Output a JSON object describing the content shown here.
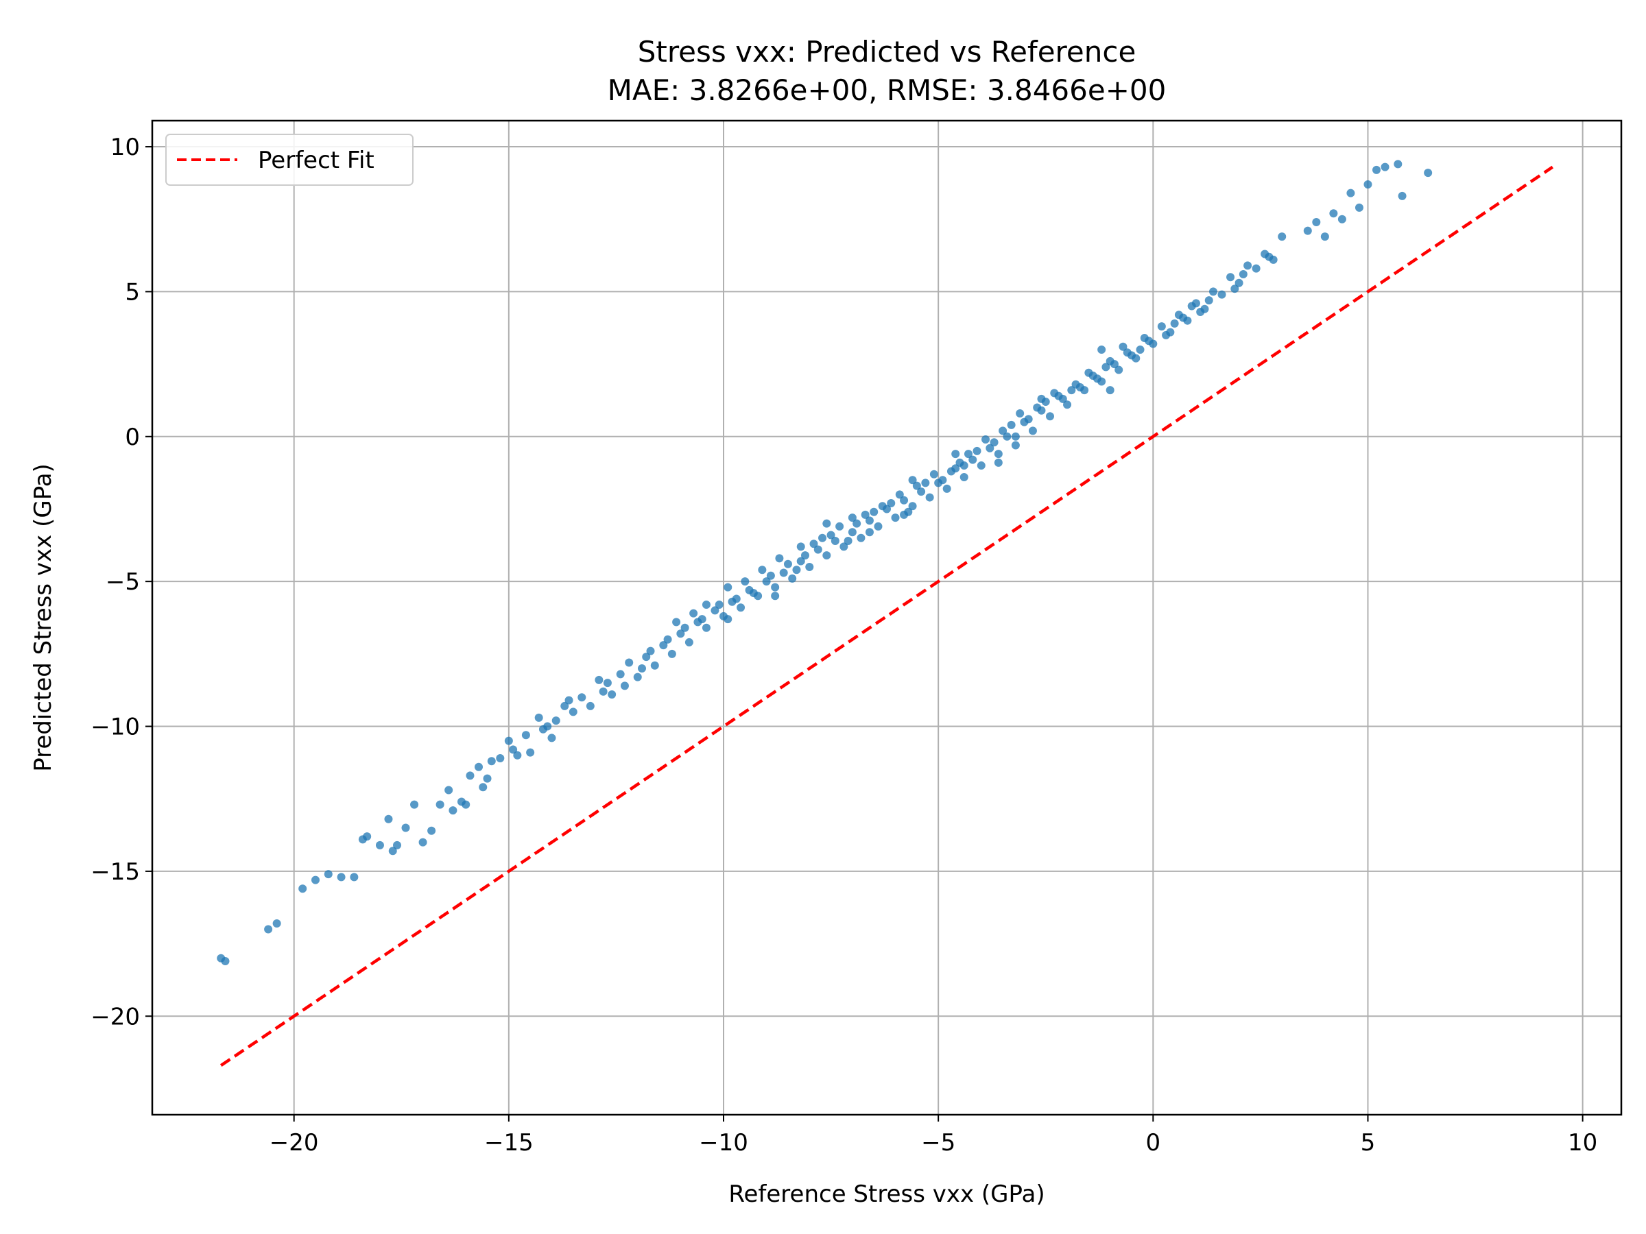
{
  "chart_data": {
    "type": "scatter",
    "title": "Stress vxx: Predicted vs Reference",
    "subtitle": "MAE: 3.8266e+00, RMSE: 3.8466e+00",
    "xlabel": "Reference Stress vxx (GPa)",
    "ylabel": "Predicted Stress vxx (GPa)",
    "xlim": [
      -23.3,
      10.9
    ],
    "ylim": [
      -23.4,
      10.9
    ],
    "xticks": [
      -20,
      -15,
      -10,
      -5,
      0,
      5,
      10
    ],
    "yticks": [
      -20,
      -15,
      -10,
      -5,
      0,
      5,
      10
    ],
    "xtick_labels": [
      "−20",
      "−15",
      "−10",
      "−5",
      "0",
      "5",
      "10"
    ],
    "ytick_labels": [
      "−20",
      "−15",
      "−10",
      "−5",
      "0",
      "5",
      "10"
    ],
    "grid": true,
    "legend": {
      "position": "top-left",
      "entries": [
        "Perfect Fit"
      ]
    },
    "perfect_fit": {
      "x": [
        -21.7,
        9.3
      ],
      "y": [
        -21.7,
        9.3
      ],
      "color": "#ff0000",
      "style": "dashed"
    },
    "series": [
      {
        "type": "scatter",
        "color": "#1f77b4",
        "points": [
          [
            -21.7,
            -18.0
          ],
          [
            -21.6,
            -18.1
          ],
          [
            -20.6,
            -17.0
          ],
          [
            -20.4,
            -16.8
          ],
          [
            -19.8,
            -15.6
          ],
          [
            -19.5,
            -15.3
          ],
          [
            -19.2,
            -15.1
          ],
          [
            -18.9,
            -15.2
          ],
          [
            -18.6,
            -15.2
          ],
          [
            -18.4,
            -13.9
          ],
          [
            -18.3,
            -13.8
          ],
          [
            -18.0,
            -14.1
          ],
          [
            -17.8,
            -13.2
          ],
          [
            -17.7,
            -14.3
          ],
          [
            -17.6,
            -14.1
          ],
          [
            -17.4,
            -13.5
          ],
          [
            -17.2,
            -12.7
          ],
          [
            -17.0,
            -14.0
          ],
          [
            -16.8,
            -13.6
          ],
          [
            -16.6,
            -12.7
          ],
          [
            -16.4,
            -12.2
          ],
          [
            -16.3,
            -12.9
          ],
          [
            -16.1,
            -12.6
          ],
          [
            -16.0,
            -12.7
          ],
          [
            -15.9,
            -11.7
          ],
          [
            -15.7,
            -11.4
          ],
          [
            -15.6,
            -12.1
          ],
          [
            -15.4,
            -11.2
          ],
          [
            -15.2,
            -11.1
          ],
          [
            -15.0,
            -10.5
          ],
          [
            -14.8,
            -11.0
          ],
          [
            -14.6,
            -10.3
          ],
          [
            -14.5,
            -10.9
          ],
          [
            -14.3,
            -9.7
          ],
          [
            -14.2,
            -10.1
          ],
          [
            -14.0,
            -10.4
          ],
          [
            -13.9,
            -9.8
          ],
          [
            -13.7,
            -9.3
          ],
          [
            -13.5,
            -9.5
          ],
          [
            -13.3,
            -9.0
          ],
          [
            -13.1,
            -9.3
          ],
          [
            -12.9,
            -8.4
          ],
          [
            -12.8,
            -8.8
          ],
          [
            -12.6,
            -8.9
          ],
          [
            -12.4,
            -8.2
          ],
          [
            -12.2,
            -7.8
          ],
          [
            -12.0,
            -8.3
          ],
          [
            -11.8,
            -7.6
          ],
          [
            -11.6,
            -7.9
          ],
          [
            -11.4,
            -7.2
          ],
          [
            -11.2,
            -7.5
          ],
          [
            -11.0,
            -6.8
          ],
          [
            -10.8,
            -7.1
          ],
          [
            -10.6,
            -6.4
          ],
          [
            -10.4,
            -6.6
          ],
          [
            -10.2,
            -6.0
          ],
          [
            -10.0,
            -6.2
          ],
          [
            -9.8,
            -5.7
          ],
          [
            -9.6,
            -5.9
          ],
          [
            -9.4,
            -5.3
          ],
          [
            -9.2,
            -5.5
          ],
          [
            -9.0,
            -5.0
          ],
          [
            -8.8,
            -5.2
          ],
          [
            -8.6,
            -4.7
          ],
          [
            -8.4,
            -4.9
          ],
          [
            -8.2,
            -4.3
          ],
          [
            -8.0,
            -4.5
          ],
          [
            -7.8,
            -3.9
          ],
          [
            -7.6,
            -4.1
          ],
          [
            -7.4,
            -3.6
          ],
          [
            -7.2,
            -3.8
          ],
          [
            -7.0,
            -3.3
          ],
          [
            -6.8,
            -3.5
          ],
          [
            -6.6,
            -2.9
          ],
          [
            -6.4,
            -3.1
          ],
          [
            -6.2,
            -2.5
          ],
          [
            -6.0,
            -2.8
          ],
          [
            -5.8,
            -2.2
          ],
          [
            -5.6,
            -2.4
          ],
          [
            -5.4,
            -1.9
          ],
          [
            -5.2,
            -2.1
          ],
          [
            -5.0,
            -1.6
          ],
          [
            -4.8,
            -1.8
          ],
          [
            -4.6,
            -1.1
          ],
          [
            -4.4,
            -1.4
          ],
          [
            -4.2,
            -0.8
          ],
          [
            -4.0,
            -1.0
          ],
          [
            -3.8,
            -0.4
          ],
          [
            -3.6,
            -0.6
          ],
          [
            -3.4,
            0.0
          ],
          [
            -3.2,
            -0.3
          ],
          [
            -3.0,
            0.5
          ],
          [
            -2.8,
            0.2
          ],
          [
            -2.6,
            0.9
          ],
          [
            -2.4,
            0.7
          ],
          [
            -2.2,
            1.4
          ],
          [
            -2.0,
            1.1
          ],
          [
            -1.8,
            1.8
          ],
          [
            -1.6,
            1.6
          ],
          [
            -1.4,
            2.1
          ],
          [
            -1.2,
            1.9
          ],
          [
            -1.0,
            2.6
          ],
          [
            -0.8,
            2.3
          ],
          [
            -0.6,
            2.9
          ],
          [
            -0.4,
            2.7
          ],
          [
            -0.2,
            3.4
          ],
          [
            0.0,
            3.2
          ],
          [
            0.2,
            3.8
          ],
          [
            0.4,
            3.6
          ],
          [
            0.6,
            4.2
          ],
          [
            0.8,
            4.0
          ],
          [
            1.0,
            4.6
          ],
          [
            1.2,
            4.4
          ],
          [
            1.4,
            5.0
          ],
          [
            1.6,
            4.9
          ],
          [
            1.8,
            5.5
          ],
          [
            2.0,
            5.3
          ],
          [
            2.2,
            5.9
          ],
          [
            2.4,
            5.8
          ],
          [
            2.6,
            6.3
          ],
          [
            2.8,
            6.1
          ],
          [
            3.0,
            6.9
          ],
          [
            3.6,
            7.1
          ],
          [
            3.8,
            7.4
          ],
          [
            4.0,
            6.9
          ],
          [
            4.2,
            7.7
          ],
          [
            4.4,
            7.5
          ],
          [
            4.6,
            8.4
          ],
          [
            4.8,
            7.9
          ],
          [
            5.0,
            8.7
          ],
          [
            5.2,
            9.2
          ],
          [
            5.4,
            9.3
          ],
          [
            5.7,
            9.4
          ],
          [
            5.8,
            8.3
          ],
          [
            6.4,
            9.1
          ],
          [
            -11.1,
            -6.4
          ],
          [
            -10.7,
            -6.1
          ],
          [
            -9.9,
            -5.2
          ],
          [
            -9.1,
            -4.6
          ],
          [
            -8.7,
            -4.2
          ],
          [
            -7.9,
            -3.7
          ],
          [
            -7.3,
            -3.1
          ],
          [
            -6.5,
            -2.6
          ],
          [
            -5.9,
            -2.0
          ],
          [
            -5.1,
            -1.3
          ],
          [
            -4.3,
            -0.6
          ],
          [
            -3.5,
            0.2
          ],
          [
            -2.7,
            1.0
          ],
          [
            -1.9,
            1.6
          ],
          [
            -1.1,
            2.4
          ],
          [
            -0.3,
            3.0
          ],
          [
            0.5,
            3.9
          ],
          [
            1.3,
            4.7
          ],
          [
            2.1,
            5.6
          ],
          [
            -13.6,
            -9.1
          ],
          [
            -12.3,
            -8.6
          ],
          [
            -11.7,
            -7.4
          ],
          [
            -10.9,
            -6.6
          ],
          [
            -10.1,
            -5.8
          ],
          [
            -9.3,
            -5.4
          ],
          [
            -8.5,
            -4.4
          ],
          [
            -7.7,
            -3.5
          ],
          [
            -6.9,
            -3.0
          ],
          [
            -6.1,
            -2.3
          ],
          [
            -5.3,
            -1.6
          ],
          [
            -4.5,
            -0.9
          ],
          [
            -3.7,
            -0.2
          ],
          [
            -2.9,
            0.6
          ],
          [
            -2.1,
            1.3
          ],
          [
            -1.3,
            2.0
          ],
          [
            -0.5,
            2.8
          ],
          [
            0.3,
            3.5
          ],
          [
            1.1,
            4.3
          ],
          [
            1.9,
            5.1
          ],
          [
            2.7,
            6.2
          ],
          [
            -15.5,
            -11.8
          ],
          [
            -14.9,
            -10.8
          ],
          [
            -14.1,
            -10.0
          ],
          [
            -12.7,
            -8.5
          ],
          [
            -11.9,
            -8.0
          ],
          [
            -11.3,
            -7.0
          ],
          [
            -10.5,
            -6.3
          ],
          [
            -9.7,
            -5.6
          ],
          [
            -8.9,
            -4.8
          ],
          [
            -8.1,
            -4.1
          ],
          [
            -7.5,
            -3.4
          ],
          [
            -6.7,
            -2.7
          ],
          [
            -5.7,
            -2.6
          ],
          [
            -4.9,
            -1.5
          ],
          [
            -4.1,
            -0.5
          ],
          [
            -3.3,
            0.4
          ],
          [
            -2.5,
            1.2
          ],
          [
            -1.7,
            1.7
          ],
          [
            -0.9,
            2.5
          ],
          [
            -0.1,
            3.3
          ],
          [
            0.7,
            4.1
          ],
          [
            -9.5,
            -5.0
          ],
          [
            -8.3,
            -4.6
          ],
          [
            -7.1,
            -3.6
          ],
          [
            -6.3,
            -2.4
          ],
          [
            -5.5,
            -1.7
          ],
          [
            -4.7,
            -1.2
          ],
          [
            -3.9,
            -0.1
          ],
          [
            -3.1,
            0.8
          ],
          [
            -2.3,
            1.5
          ],
          [
            -1.5,
            2.2
          ],
          [
            -0.7,
            3.1
          ],
          [
            0.9,
            4.5
          ],
          [
            -9.9,
            -6.3
          ],
          [
            -8.2,
            -3.8
          ],
          [
            -7.6,
            -3.0
          ],
          [
            -6.6,
            -3.3
          ],
          [
            -5.6,
            -1.5
          ],
          [
            -4.6,
            -0.6
          ],
          [
            -3.6,
            -0.9
          ],
          [
            -2.6,
            1.3
          ],
          [
            -1.2,
            3.0
          ],
          [
            -10.4,
            -5.8
          ],
          [
            -8.8,
            -5.5
          ],
          [
            -7.0,
            -2.8
          ],
          [
            -5.8,
            -2.7
          ],
          [
            -4.4,
            -1.0
          ],
          [
            -3.2,
            0.0
          ],
          [
            -1.0,
            1.6
          ]
        ]
      }
    ]
  }
}
